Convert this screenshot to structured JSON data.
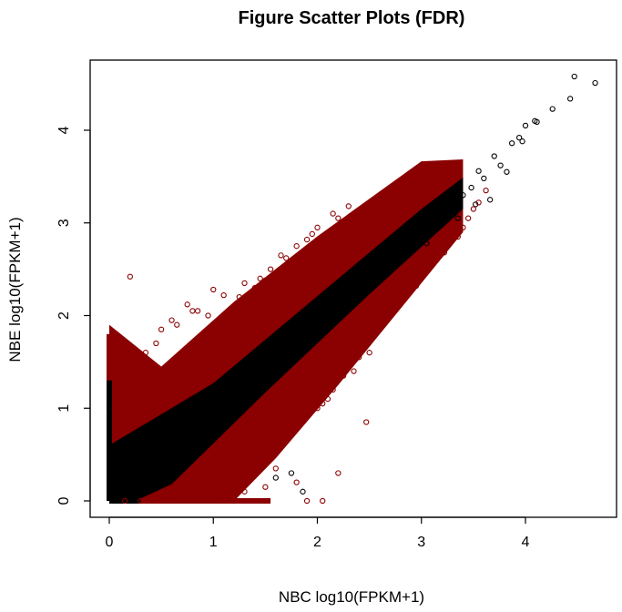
{
  "chart_data": {
    "type": "scatter",
    "title": "Figure Scatter Plots (FDR)",
    "xlabel": "NBC  log10(FPKM+1)",
    "ylabel": "NBE  log10(FPKM+1)",
    "xlim": [
      0,
      4.73
    ],
    "ylim": [
      0,
      4.62
    ],
    "x_ticks": [
      "0",
      "1",
      "2",
      "3",
      "4"
    ],
    "y_ticks": [
      "0",
      "1",
      "2",
      "3",
      "4"
    ],
    "grid": false,
    "legend": "none",
    "marker": "open-circle",
    "colors": {
      "not_significant": "#000000",
      "significant": "#8b0000",
      "axis": "#000000"
    },
    "series": [
      {
        "description": "not significant",
        "color": "#000000",
        "x": [
          4.67,
          4.47,
          4.43,
          4.26,
          4.11,
          4.09,
          4.0,
          3.97,
          3.94,
          3.87,
          3.82,
          3.76,
          3.7,
          3.66,
          3.6,
          3.55,
          3.52,
          3.48,
          3.4,
          3.35,
          3.28,
          3.2,
          3.15,
          3.1,
          3.05,
          2.98,
          2.9,
          2.85,
          2.78,
          2.7,
          2.62,
          2.55,
          2.5,
          2.42,
          1.86,
          1.75,
          1.6
        ],
        "y": [
          4.51,
          4.58,
          4.34,
          4.23,
          4.09,
          4.1,
          4.05,
          3.88,
          3.92,
          3.86,
          3.55,
          3.62,
          3.72,
          3.25,
          3.48,
          3.56,
          3.2,
          3.38,
          3.3,
          3.05,
          3.12,
          3.02,
          2.98,
          3.1,
          2.78,
          2.88,
          2.75,
          2.95,
          2.62,
          2.58,
          2.45,
          2.35,
          2.52,
          2.2,
          0.1,
          0.3,
          0.25
        ]
      },
      {
        "description": "significant",
        "color": "#8b0000",
        "x": [
          3.62,
          3.55,
          3.5,
          3.45,
          3.4,
          3.35,
          3.3,
          3.22,
          3.15,
          3.1,
          3.05,
          3.0,
          2.95,
          2.9,
          2.8,
          2.75,
          2.7,
          2.65,
          2.6,
          2.55,
          2.5,
          2.45,
          2.4,
          2.35,
          2.3,
          2.25,
          2.2,
          2.15,
          2.1,
          2.05,
          2.0,
          2.47,
          2.3,
          2.2,
          2.15,
          2.0,
          1.95,
          1.9,
          1.85,
          1.8,
          1.75,
          1.7,
          1.65,
          1.6,
          1.55,
          1.5,
          1.45,
          1.4,
          1.3,
          1.25,
          1.1,
          1.0,
          0.95,
          0.85,
          0.8,
          0.75,
          0.65,
          0.6,
          0.5,
          0.45,
          0.35,
          0.25,
          0.2,
          0.15,
          0.1,
          0.05,
          1.5,
          1.45,
          1.35,
          1.3,
          1.2,
          1.15,
          1.05,
          1.0,
          0.9,
          0.8,
          0.7,
          0.6,
          0.55,
          0.45,
          0.3,
          0.15,
          2.2,
          2.05,
          1.9,
          1.8,
          1.6,
          1.5,
          1.4,
          1.3,
          1.2
        ],
        "y": [
          3.35,
          3.22,
          3.15,
          3.05,
          2.95,
          2.85,
          2.9,
          2.68,
          2.7,
          2.55,
          2.5,
          2.52,
          2.32,
          2.4,
          2.28,
          2.15,
          2.1,
          2.3,
          1.95,
          1.85,
          1.6,
          1.72,
          1.55,
          1.4,
          1.5,
          1.35,
          1.3,
          1.2,
          1.1,
          1.05,
          1.0,
          0.85,
          3.18,
          3.05,
          3.1,
          2.95,
          2.88,
          2.82,
          2.6,
          2.75,
          2.58,
          2.62,
          2.65,
          2.45,
          2.5,
          2.38,
          2.4,
          2.3,
          2.35,
          2.2,
          2.22,
          2.28,
          2.0,
          2.05,
          2.05,
          2.12,
          1.9,
          1.95,
          1.85,
          1.7,
          1.6,
          1.5,
          2.42,
          1.45,
          1.2,
          1.0,
          0.0,
          0.0,
          0.0,
          0.0,
          0.0,
          0.0,
          0.0,
          0.0,
          0.0,
          0.0,
          0.0,
          0.0,
          0.0,
          0.0,
          0.0,
          0.0,
          0.3,
          0.0,
          0.0,
          0.2,
          0.35,
          0.15,
          0.4,
          0.1,
          0.2
        ]
      }
    ],
    "dense_band": {
      "description": "dense cloud of points along y = x",
      "black_core_offset": 0.3,
      "red_halo_offset": 0.95,
      "x_range": [
        0,
        3.0
      ]
    }
  }
}
